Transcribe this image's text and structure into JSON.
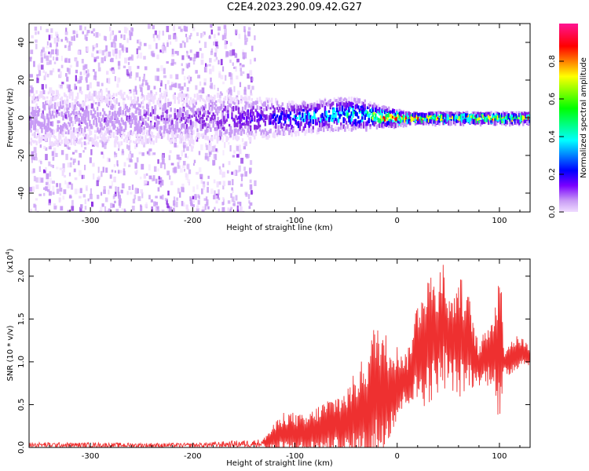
{
  "title": "C2E4.2023.290.09.42.G27",
  "colorbar": {
    "label": "Normalized spectral amplitude",
    "ticks": [
      "0.0",
      "0.2",
      "0.4",
      "0.6",
      "0.8"
    ],
    "tick_values": [
      0.0,
      0.2,
      0.4,
      0.6,
      0.8
    ],
    "range": [
      0.0,
      1.0
    ]
  },
  "chart_data": [
    {
      "type": "heatmap",
      "xlabel": "Height of straight line (km)",
      "ylabel": "Frequency (Hz)",
      "xlim": [
        -360,
        130
      ],
      "ylim": [
        -50,
        50
      ],
      "xticks": [
        -300,
        -200,
        -100,
        0,
        100
      ],
      "yticks": [
        -40,
        -20,
        0,
        20,
        40
      ],
      "xtick_labels": [
        "-300",
        "-200",
        "-100",
        "0",
        "100"
      ],
      "ytick_labels": [
        "-40",
        "-20",
        "0",
        "20",
        "40"
      ],
      "colormap": [
        "#f0dcff",
        "#c89bf5",
        "#8a2be2",
        "#6a00ff",
        "#0000ff",
        "#00ffff",
        "#00ff66",
        "#ffff00",
        "#ff0000",
        "#ff1493"
      ],
      "band_profile": {
        "x": [
          -360,
          -300,
          -200,
          -150,
          -120,
          -100,
          -60,
          -40,
          -20,
          0,
          10,
          60,
          90,
          100,
          130
        ],
        "center_hz": [
          0,
          0,
          0,
          0,
          0,
          0,
          2,
          2,
          1,
          0,
          0,
          0,
          0,
          0,
          0
        ],
        "halfwidth_hz": [
          10,
          10,
          9,
          8,
          7,
          6,
          6,
          6,
          4,
          3,
          2,
          2,
          2,
          2,
          2
        ],
        "peak_amplitude": [
          0.15,
          0.15,
          0.2,
          0.3,
          0.35,
          0.45,
          0.55,
          0.6,
          0.8,
          0.85,
          0.85,
          0.75,
          0.85,
          0.8,
          0.75
        ]
      },
      "scatter_extent": {
        "x": [
          -360,
          -140
        ],
        "y": [
          -50,
          50
        ],
        "amplitude": 0.05
      }
    },
    {
      "type": "line",
      "xlabel": "Height of straight line (km)",
      "ylabel": "SNR (10 * v/v)",
      "y_multiplier": "(x10^4)",
      "xlim": [
        -360,
        130
      ],
      "ylim": [
        0,
        2.2
      ],
      "xticks": [
        -300,
        -200,
        -100,
        0,
        100
      ],
      "yticks": [
        0.0,
        0.5,
        1.0,
        1.5,
        2.0
      ],
      "xtick_labels": [
        "-300",
        "-200",
        "-100",
        "0",
        "100"
      ],
      "ytick_labels": [
        "0.0",
        "0.5",
        "1.0",
        "1.5",
        "2.0"
      ],
      "color": "#ee3030",
      "envelope": {
        "x": [
          -360,
          -200,
          -130,
          -110,
          -90,
          -70,
          -50,
          -30,
          -20,
          -10,
          0,
          10,
          20,
          30,
          40,
          45,
          50,
          60,
          70,
          80,
          90,
          95,
          100,
          105,
          110,
          120,
          130
        ],
        "y_max": [
          0.06,
          0.05,
          0.1,
          0.35,
          0.3,
          0.45,
          0.55,
          0.9,
          1.25,
          1.1,
          1.05,
          1.0,
          1.55,
          1.85,
          1.7,
          2.18,
          1.55,
          1.8,
          1.6,
          1.1,
          1.4,
          1.45,
          1.95,
          1.1,
          1.2,
          1.25,
          1.15
        ],
        "y_min": [
          0.0,
          0.0,
          0.0,
          0.0,
          0.0,
          0.0,
          0.0,
          0.0,
          0.1,
          0.25,
          0.45,
          0.6,
          0.7,
          0.75,
          0.85,
          0.95,
          0.9,
          0.8,
          0.85,
          0.8,
          0.85,
          0.9,
          0.4,
          0.9,
          0.9,
          1.0,
          1.0
        ]
      }
    }
  ]
}
